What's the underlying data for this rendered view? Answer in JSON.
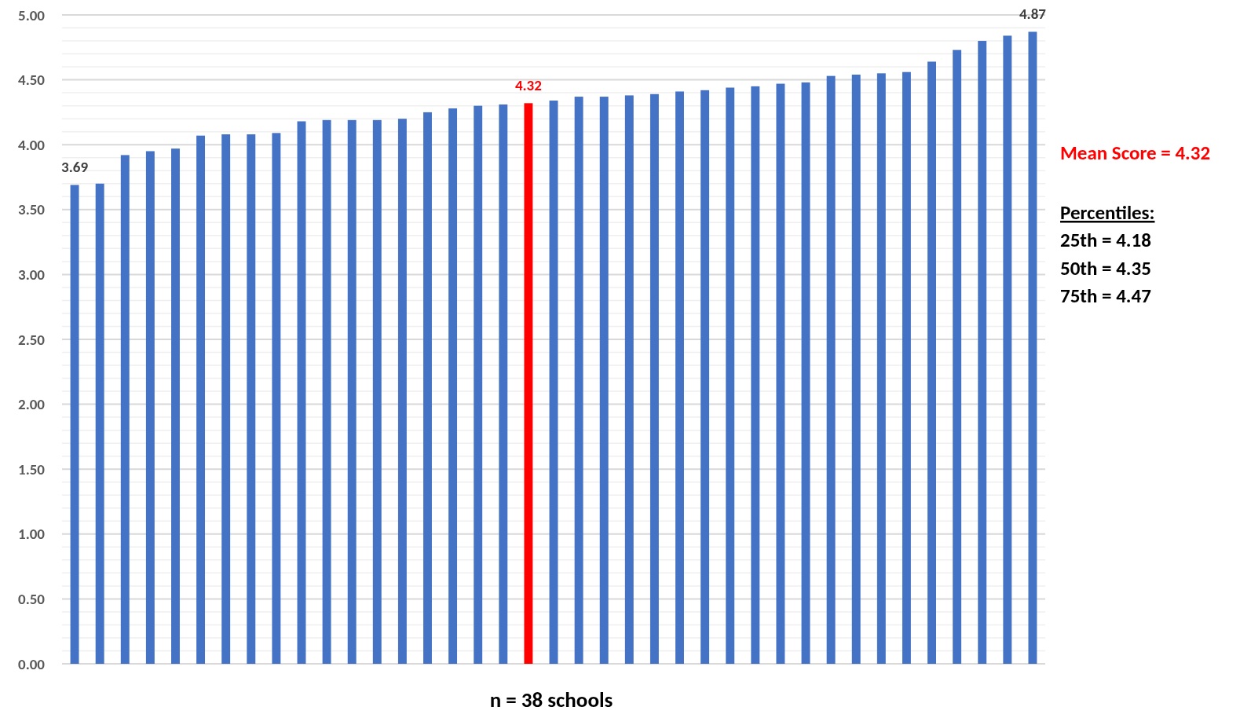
{
  "chart_data": {
    "type": "bar",
    "categories": [
      null,
      null,
      null,
      null,
      null,
      null,
      null,
      null,
      null,
      null,
      null,
      null,
      null,
      null,
      null,
      null,
      null,
      null,
      null,
      null,
      null,
      null,
      null,
      null,
      null,
      null,
      null,
      null,
      null,
      null,
      null,
      null,
      null,
      null,
      null,
      null,
      null,
      null,
      null
    ],
    "values": [
      3.69,
      3.7,
      3.92,
      3.95,
      3.97,
      4.07,
      4.08,
      4.08,
      4.09,
      4.18,
      4.19,
      4.19,
      4.19,
      4.2,
      4.25,
      4.28,
      4.3,
      4.31,
      4.32,
      4.34,
      4.37,
      4.37,
      4.38,
      4.39,
      4.41,
      4.42,
      4.44,
      4.45,
      4.47,
      4.48,
      4.53,
      4.54,
      4.55,
      4.56,
      4.64,
      4.73,
      4.8,
      4.84,
      4.87
    ],
    "colors": [
      "#4472c4",
      "#4472c4",
      "#4472c4",
      "#4472c4",
      "#4472c4",
      "#4472c4",
      "#4472c4",
      "#4472c4",
      "#4472c4",
      "#4472c4",
      "#4472c4",
      "#4472c4",
      "#4472c4",
      "#4472c4",
      "#4472c4",
      "#4472c4",
      "#4472c4",
      "#4472c4",
      "#ff0000",
      "#4472c4",
      "#4472c4",
      "#4472c4",
      "#4472c4",
      "#4472c4",
      "#4472c4",
      "#4472c4",
      "#4472c4",
      "#4472c4",
      "#4472c4",
      "#4472c4",
      "#4472c4",
      "#4472c4",
      "#4472c4",
      "#4472c4",
      "#4472c4",
      "#4472c4",
      "#4472c4",
      "#4472c4",
      "#4472c4"
    ],
    "value_labels": [
      "3.69",
      null,
      null,
      null,
      null,
      null,
      null,
      null,
      null,
      null,
      null,
      null,
      null,
      null,
      null,
      null,
      null,
      null,
      "4.32",
      null,
      null,
      null,
      null,
      null,
      null,
      null,
      null,
      null,
      null,
      null,
      null,
      null,
      null,
      null,
      null,
      null,
      null,
      null,
      "4.87"
    ],
    "xlabel": "n = 38 schools",
    "annotations": [
      "Mean Score = 4.32",
      "Percentiles:",
      "25th = 4.18",
      "50th = 4.35",
      "75th = 4.47"
    ],
    "ylim": [
      0,
      5
    ],
    "yticks": [
      {
        "value": 0,
        "label": "0.00"
      },
      {
        "value": 0.1,
        "label": null
      },
      {
        "value": 0.2,
        "label": null
      },
      {
        "value": 0.3,
        "label": null
      },
      {
        "value": 0.4,
        "label": null
      },
      {
        "value": 0.5,
        "label": "0.50"
      },
      {
        "value": 0.6,
        "label": null
      },
      {
        "value": 0.7,
        "label": null
      },
      {
        "value": 0.8,
        "label": null
      },
      {
        "value": 0.9,
        "label": null
      },
      {
        "value": 1,
        "label": "1.00"
      },
      {
        "value": 1.1,
        "label": null
      },
      {
        "value": 1.2,
        "label": null
      },
      {
        "value": 1.3,
        "label": null
      },
      {
        "value": 1.4,
        "label": null
      },
      {
        "value": 1.5,
        "label": "1.50"
      },
      {
        "value": 1.6,
        "label": null
      },
      {
        "value": 1.7,
        "label": null
      },
      {
        "value": 1.8,
        "label": null
      },
      {
        "value": 1.9,
        "label": null
      },
      {
        "value": 2,
        "label": "2.00"
      },
      {
        "value": 2.1,
        "label": null
      },
      {
        "value": 2.2,
        "label": null
      },
      {
        "value": 2.3,
        "label": null
      },
      {
        "value": 2.4,
        "label": null
      },
      {
        "value": 2.5,
        "label": "2.50"
      },
      {
        "value": 2.6,
        "label": null
      },
      {
        "value": 2.7,
        "label": null
      },
      {
        "value": 2.8,
        "label": null
      },
      {
        "value": 2.9,
        "label": null
      },
      {
        "value": 3,
        "label": "3.00"
      },
      {
        "value": 3.1,
        "label": null
      },
      {
        "value": 3.2,
        "label": null
      },
      {
        "value": 3.3,
        "label": null
      },
      {
        "value": 3.4,
        "label": null
      },
      {
        "value": 3.5,
        "label": "3.50"
      },
      {
        "value": 3.6,
        "label": null
      },
      {
        "value": 3.7,
        "label": null
      },
      {
        "value": 3.8,
        "label": null
      },
      {
        "value": 3.9,
        "label": null
      },
      {
        "value": 4,
        "label": "4.00"
      },
      {
        "value": 4.1,
        "label": null
      },
      {
        "value": 4.2,
        "label": null
      },
      {
        "value": 4.3,
        "label": null
      },
      {
        "value": 4.4,
        "label": null
      },
      {
        "value": 4.5,
        "label": "4.50"
      },
      {
        "value": 4.6,
        "label": null
      },
      {
        "value": 4.7,
        "label": null
      },
      {
        "value": 4.8,
        "label": null
      },
      {
        "value": 4.9,
        "label": null
      },
      {
        "value": 5,
        "label": "5.00"
      }
    ],
    "grid": "y"
  }
}
